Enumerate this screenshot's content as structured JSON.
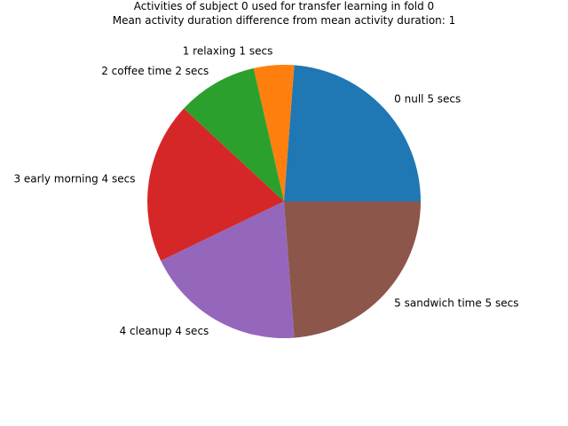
{
  "chart_data": {
    "type": "pie",
    "title_lines": [
      "Activities of subject 0 used for transfer learning in fold 0",
      "Mean activity duration difference from mean activity duration: 1"
    ],
    "labels": [
      "0 null 5 secs",
      "1 relaxing 1 secs",
      "2 coffee time 2 secs",
      "3 early morning 4 secs",
      "4 cleanup 4 secs",
      "5 sandwich time 5 secs"
    ],
    "values": [
      5,
      1,
      2,
      4,
      4,
      5
    ],
    "colors": [
      "#1f77b4",
      "#ff7f0e",
      "#2ca02c",
      "#d62728",
      "#9467bd",
      "#8c564b"
    ],
    "start_angle_deg": 0,
    "direction": "counterclockwise"
  }
}
